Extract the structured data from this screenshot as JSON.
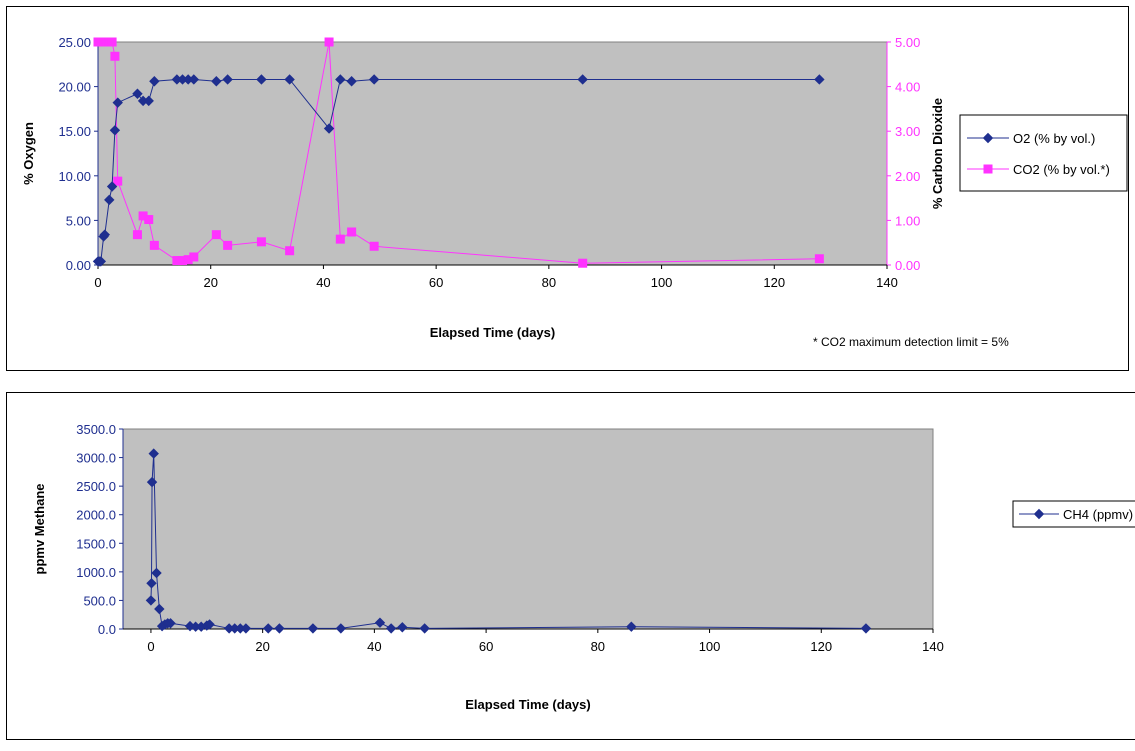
{
  "chart_data": [
    {
      "type": "line",
      "xlabel": "Elapsed Time (days)",
      "ylabel": "% Oxygen",
      "y2label": "% Carbon Dioxide",
      "xlim": [
        0,
        140
      ],
      "ylim": [
        0,
        25
      ],
      "y2lim": [
        0,
        5
      ],
      "x_ticks": [
        "0",
        "20",
        "40",
        "60",
        "80",
        "100",
        "120",
        "140"
      ],
      "y_ticks": [
        "0.00",
        "5.00",
        "10.00",
        "15.00",
        "20.00",
        "25.00"
      ],
      "y2_ticks": [
        "0.00",
        "1.00",
        "2.00",
        "3.00",
        "4.00",
        "5.00"
      ],
      "grid": false,
      "legend_position": "right",
      "note": "* CO2 maximum detection limit = 5%",
      "colors": {
        "o2": "#1f2f8f",
        "co2": "#ff33ff",
        "plot_bg": "#c0c0c0"
      },
      "series": [
        {
          "name": "O2 (% by vol.)",
          "axis": "left",
          "marker": "diamond",
          "x": [
            0,
            0.2,
            0.5,
            1,
            1.2,
            2,
            2.5,
            3,
            3.5,
            7,
            8,
            9,
            10,
            14,
            15,
            16,
            17,
            21,
            23,
            29,
            34,
            41,
            43,
            45,
            49,
            86,
            128
          ],
          "y": [
            0.4,
            0.4,
            0.4,
            3.2,
            3.4,
            7.3,
            8.8,
            15.1,
            18.2,
            19.2,
            18.4,
            18.4,
            20.6,
            20.8,
            20.8,
            20.8,
            20.8,
            20.6,
            20.8,
            20.8,
            20.8,
            15.3,
            20.8,
            20.6,
            20.8,
            20.8,
            20.8
          ]
        },
        {
          "name": "CO2 (% by vol.*)",
          "axis": "right",
          "marker": "square",
          "x": [
            0,
            0.5,
            1,
            1.5,
            2,
            2.5,
            3,
            3.5,
            7,
            8,
            9,
            10,
            14,
            15,
            16,
            17,
            21,
            23,
            29,
            34,
            41,
            43,
            45,
            49,
            86,
            128
          ],
          "y": [
            5.0,
            5.0,
            5.0,
            5.0,
            5.0,
            5.0,
            4.68,
            1.88,
            0.68,
            1.1,
            1.02,
            0.44,
            0.1,
            0.1,
            0.12,
            0.18,
            0.68,
            0.44,
            0.52,
            0.32,
            5.0,
            0.58,
            0.74,
            0.42,
            0.04,
            0.14
          ]
        }
      ]
    },
    {
      "type": "line",
      "xlabel": "Elapsed Time (days)",
      "ylabel": "ppmv Methane",
      "xlim": [
        -5,
        140
      ],
      "ylim": [
        0,
        3500
      ],
      "x_ticks": [
        "0",
        "20",
        "40",
        "60",
        "80",
        "100",
        "120",
        "140"
      ],
      "y_ticks": [
        "0.0",
        "500.0",
        "1000.0",
        "1500.0",
        "2000.0",
        "2500.0",
        "3000.0",
        "3500.0"
      ],
      "grid": false,
      "legend_position": "right",
      "colors": {
        "ch4": "#1f2f8f",
        "plot_bg": "#c0c0c0"
      },
      "series": [
        {
          "name": "CH4 (ppmv)",
          "marker": "diamond",
          "x": [
            0,
            0.1,
            0.2,
            0.5,
            1,
            1.5,
            2,
            2.5,
            3,
            3.5,
            7,
            8,
            9,
            10,
            10.5,
            14,
            15,
            16,
            17,
            21,
            23,
            29,
            34,
            41,
            43,
            45,
            49,
            86,
            128
          ],
          "y": [
            500,
            800,
            2570,
            3070,
            980,
            350,
            50,
            80,
            100,
            100,
            50,
            40,
            40,
            60,
            80,
            10,
            10,
            10,
            10,
            10,
            10,
            10,
            10,
            110,
            10,
            30,
            10,
            40,
            10
          ]
        }
      ]
    }
  ]
}
